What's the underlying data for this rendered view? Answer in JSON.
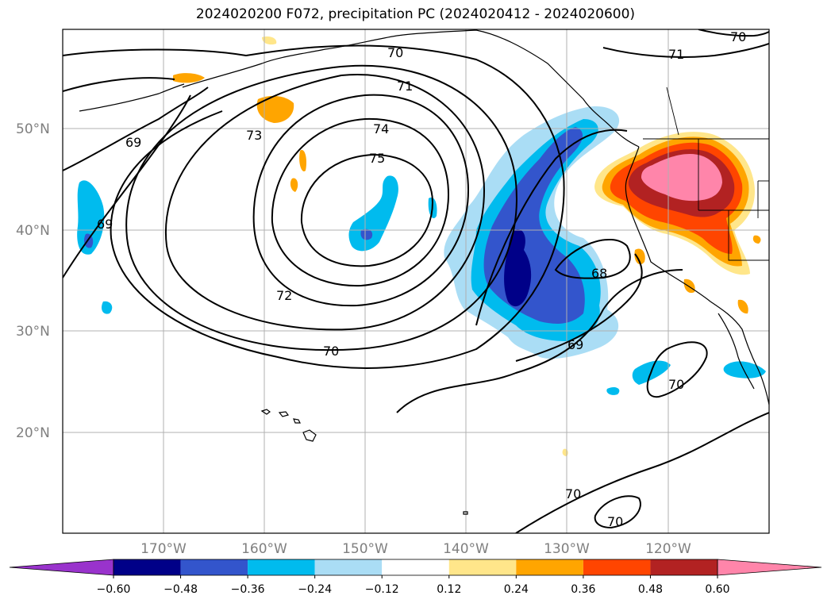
{
  "title": "2024020200 F072, precipitation PC (2024020412 - 2024020600)",
  "lat_labels": [
    "50°N",
    "40°N",
    "30°N",
    "20°N"
  ],
  "lon_labels": [
    "170°W",
    "160°W",
    "150°W",
    "140°W",
    "130°W",
    "120°W"
  ],
  "contour_labels": [
    "70",
    "71",
    "72",
    "73",
    "74",
    "75",
    "69",
    "69",
    "68",
    "69",
    "70",
    "70",
    "70",
    "70",
    "71",
    "70"
  ],
  "colorbar": {
    "ticks": [
      "−0.60",
      "−0.48",
      "−0.36",
      "−0.24",
      "−0.12",
      "0.12",
      "0.24",
      "0.36",
      "0.48",
      "0.60"
    ],
    "colors": [
      "#9933cc",
      "#000088",
      "#3355cc",
      "#00bbee",
      "#aaddf5",
      "#ffffff",
      "#ffe68a",
      "#ffa500",
      "#ff4500",
      "#b22222",
      "#ff85aa",
      "#ff85aa"
    ]
  },
  "colors": {
    "positive_high": "#ff85aa",
    "positive_mid": "#b22222",
    "negative_low": "#000088",
    "negative_mid": "#3355cc"
  }
}
